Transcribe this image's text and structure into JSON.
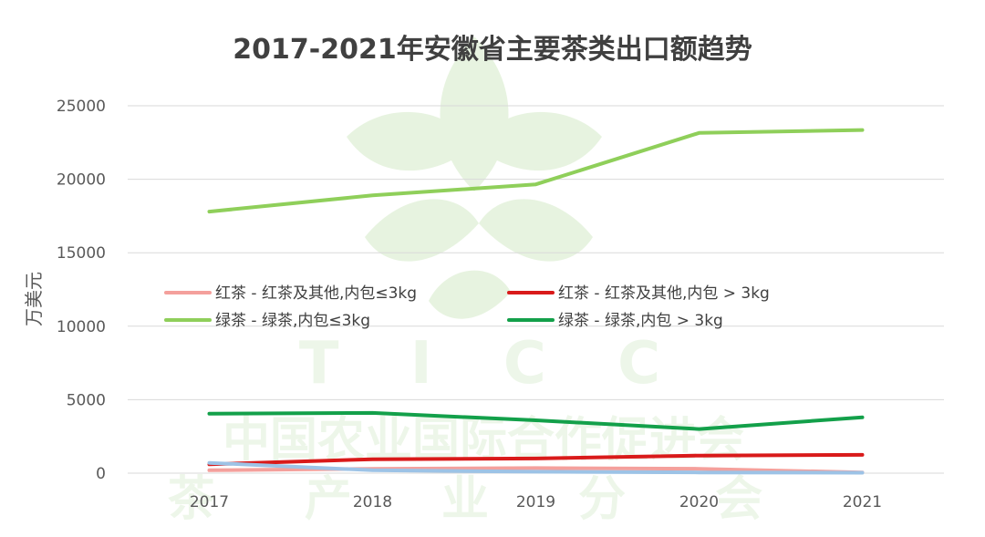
{
  "chart_data": {
    "type": "line",
    "title": "2017-2021年安徽省主要茶类出口额趋势",
    "xlabel": "",
    "ylabel": "万美元",
    "x": [
      "2017",
      "2018",
      "2019",
      "2020",
      "2021"
    ],
    "ylim": [
      0,
      25000
    ],
    "yticks": [
      0,
      5000,
      10000,
      15000,
      20000,
      25000
    ],
    "grid": true,
    "legend_position": "middle",
    "series": [
      {
        "name": "红茶 - 红茶及其他,内包≤3kg",
        "color": "#f4a09c",
        "values": [
          200,
          300,
          350,
          300,
          50
        ]
      },
      {
        "name": "红茶 - 红茶及其他,内包 > 3kg",
        "color": "#d91a1a",
        "values": [
          600,
          950,
          1000,
          1200,
          1250
        ]
      },
      {
        "name": "绿茶 - 绿茶,内包≤3kg",
        "color": "#8fcf5a",
        "values": [
          17800,
          18900,
          19650,
          23150,
          23350
        ]
      },
      {
        "name": "绿茶 - 绿茶,内包 > 3kg",
        "color": "#13a04a",
        "values": [
          4050,
          4100,
          3600,
          3000,
          3800
        ]
      },
      {
        "name": "",
        "color": "#9dc3e6",
        "values": [
          700,
          200,
          100,
          50,
          30
        ]
      }
    ]
  },
  "watermark": {
    "letters": "T I C C",
    "org_line": "中国农业国际合作促进会",
    "branch_line": "茶 产 业 分 会"
  }
}
